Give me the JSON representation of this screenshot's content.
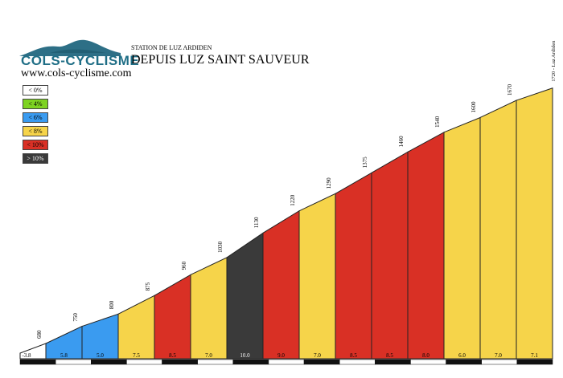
{
  "header": {
    "brand": "COLS-CYCLISME",
    "website": "www.cols-cyclisme.com",
    "subtitle": "STATION DE LUZ ARDIDEN",
    "title": "DEPUIS LUZ SAINT SAUVEUR"
  },
  "legend": [
    {
      "label": "< 0%",
      "color": "#ffffff"
    },
    {
      "label": "< 4%",
      "color": "#7ed321"
    },
    {
      "label": "< 6%",
      "color": "#3a9bf0"
    },
    {
      "label": "< 8%",
      "color": "#f6d44a"
    },
    {
      "label": "< 10%",
      "color": "#d93025"
    },
    {
      "label": "> 10%",
      "color": "#3a3a3a"
    }
  ],
  "colors": {
    "band_0": "#ffffff",
    "band_4": "#7ed321",
    "band_6": "#3a9bf0",
    "band_8": "#f6d44a",
    "band_10": "#d93025",
    "band_gt10": "#3a3a3a",
    "logo": "#2d6f86"
  },
  "chart_data": {
    "type": "area",
    "title": "DEPUIS LUZ SAINT SAUVEUR",
    "subtitle": "STATION DE LUZ ARDIDEN",
    "altitudes": [
      680,
      750,
      800,
      875,
      960,
      1030,
      1130,
      1220,
      1290,
      1375,
      1460,
      1540,
      1600,
      1670
    ],
    "segments": [
      {
        "gradient": "5.8",
        "color": "#3a9bf0"
      },
      {
        "gradient": "5.0",
        "color": "#3a9bf0"
      },
      {
        "gradient": "7.5",
        "color": "#f6d44a"
      },
      {
        "gradient": "8.5",
        "color": "#d93025"
      },
      {
        "gradient": "7.0",
        "color": "#f6d44a"
      },
      {
        "gradient": "10.0",
        "color": "#3a3a3a"
      },
      {
        "gradient": "9.0",
        "color": "#d93025"
      },
      {
        "gradient": "7.0",
        "color": "#f6d44a"
      },
      {
        "gradient": "8.5",
        "color": "#d93025"
      },
      {
        "gradient": "8.5",
        "color": "#d93025"
      },
      {
        "gradient": "8.0",
        "color": "#d93025"
      },
      {
        "gradient": "6.0",
        "color": "#f6d44a"
      },
      {
        "gradient": "7.0",
        "color": "#f6d44a"
      },
      {
        "gradient": "7.1",
        "color": "#f6d44a"
      }
    ],
    "start_gradient": "-3.8",
    "summit_label": "1720 - Luz Ardiden",
    "summit_altitude": 1720
  }
}
